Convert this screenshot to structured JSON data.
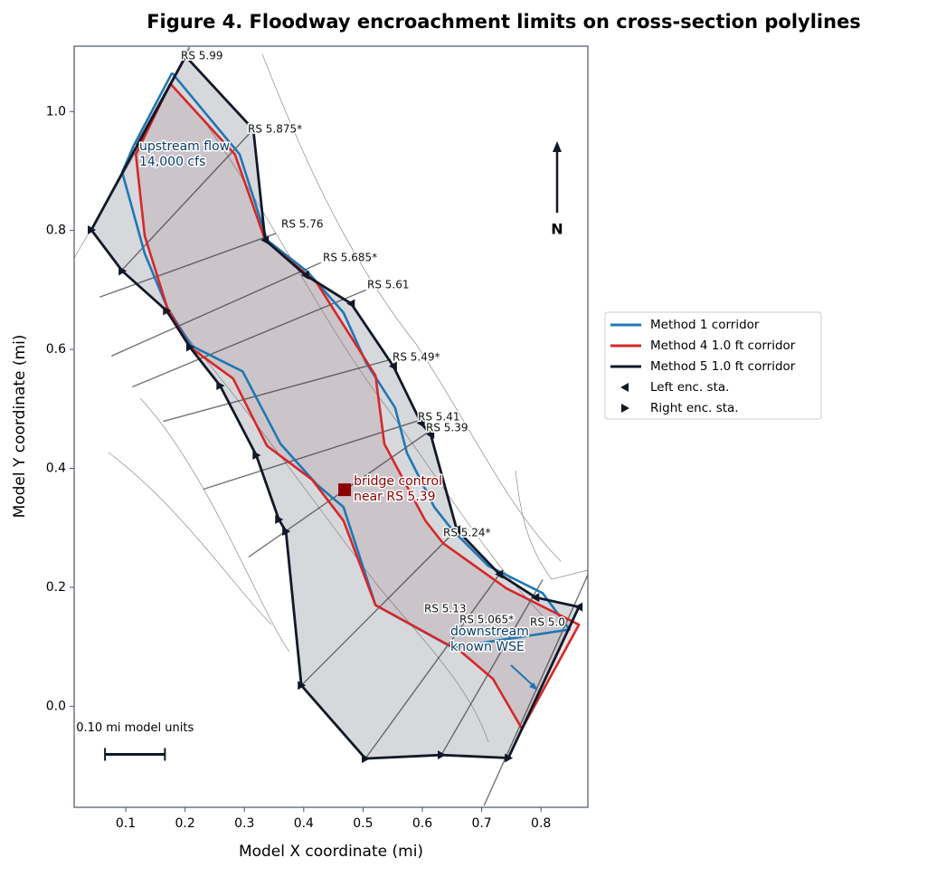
{
  "chart_data": {
    "type": "line",
    "title": "Figure 4. Floodway encroachment limits on cross-section polylines",
    "xlabel": "Model X coordinate (mi)",
    "ylabel": "Model Y coordinate (mi)",
    "xlim": [
      0.013,
      0.879
    ],
    "ylim": [
      -0.17,
      1.11
    ],
    "xticks": [
      0.1,
      0.2,
      0.3,
      0.4,
      0.5,
      0.6,
      0.7,
      0.8
    ],
    "yticks": [
      {
        "value": 0,
        "label": "0.0"
      },
      0.2,
      0.4,
      0.6,
      0.8,
      {
        "value": 1,
        "label": "1.0"
      }
    ],
    "legend": "outside right",
    "series": [
      {
        "name": "Method 1 corridor",
        "color": "#1f77b4",
        "x": [
          0.178,
          0.114,
          0.094,
          0.132,
          0.17,
          0.211,
          0.297,
          0.361,
          0.422,
          0.467,
          0.521,
          0.65,
          0.848,
          0.803,
          0.711,
          0.65,
          0.62,
          0.574,
          0.554,
          0.505,
          0.467,
          0.406,
          0.338,
          0.292,
          0.178
        ],
        "y": [
          1.065,
          0.944,
          0.898,
          0.761,
          0.67,
          0.606,
          0.563,
          0.441,
          0.373,
          0.335,
          0.17,
          0.099,
          0.129,
          0.19,
          0.236,
          0.297,
          0.335,
          0.426,
          0.502,
          0.578,
          0.662,
          0.731,
          0.784,
          0.928,
          1.065
        ]
      },
      {
        "name": "Method 4 1.0 ft corridor",
        "color": "#d62728",
        "x": [
          0.175,
          0.117,
          0.132,
          0.17,
          0.208,
          0.281,
          0.338,
          0.414,
          0.467,
          0.521,
          0.666,
          0.719,
          0.768,
          0.864,
          0.742,
          0.635,
          0.605,
          0.536,
          0.521,
          0.422,
          0.335,
          0.284,
          0.175
        ],
        "y": [
          1.047,
          0.928,
          0.791,
          0.67,
          0.604,
          0.551,
          0.438,
          0.381,
          0.312,
          0.17,
          0.091,
          0.046,
          -0.038,
          0.137,
          0.198,
          0.274,
          0.312,
          0.441,
          0.556,
          0.712,
          0.784,
          0.928,
          1.047
        ]
      },
      {
        "name": "Method 5 1.0 ft corridor",
        "color": "#111827",
        "x": [
          0.201,
          0.315,
          0.335,
          0.403,
          0.48,
          0.551,
          0.598,
          0.614,
          0.658,
          0.73,
          0.791,
          0.864,
          0.745,
          0.632,
          0.504,
          0.396,
          0.37,
          0.358,
          0.32,
          0.259,
          0.208,
          0.169,
          0.094,
          0.042,
          0.201
        ],
        "y": [
          1.093,
          0.97,
          0.784,
          0.725,
          0.677,
          0.572,
          0.476,
          0.457,
          0.297,
          0.222,
          0.183,
          0.167,
          -0.087,
          -0.082,
          -0.088,
          0.035,
          0.294,
          0.314,
          0.422,
          0.539,
          0.604,
          0.665,
          0.732,
          0.801,
          1.093
        ]
      },
      {
        "name": "Left enc. sta.",
        "color": "#111827",
        "marker": "<",
        "x": [
          0.315,
          0.335,
          0.403,
          0.48,
          0.551,
          0.598,
          0.614,
          0.658,
          0.73,
          0.791,
          0.864
        ],
        "y": [
          0.97,
          0.784,
          0.725,
          0.677,
          0.572,
          0.476,
          0.457,
          0.297,
          0.222,
          0.183,
          0.167
        ]
      },
      {
        "name": "Right enc. sta.",
        "color": "#111827",
        "marker": ">",
        "x": [
          0.201,
          0.042,
          0.094,
          0.169,
          0.208,
          0.259,
          0.32,
          0.358,
          0.37,
          0.396,
          0.504,
          0.632,
          0.745
        ],
        "y": [
          1.093,
          0.801,
          0.732,
          0.665,
          0.604,
          0.539,
          0.422,
          0.314,
          0.294,
          0.035,
          -0.088,
          -0.082,
          -0.087
        ]
      }
    ],
    "cross_sections": [
      {
        "label": "RS 5.99",
        "x": [
          0.117,
          0.208
        ],
        "y": [
          0.944,
          1.108
        ]
      },
      {
        "label": "RS 5.875*",
        "x": [
          0.094,
          0.315
        ],
        "y": [
          0.734,
          0.97
        ]
      },
      {
        "label": "RS 5.76",
        "x": [
          0.056,
          0.353
        ],
        "y": [
          0.688,
          0.795
        ]
      },
      {
        "label": "RS 5.685*",
        "x": [
          0.076,
          0.429
        ],
        "y": [
          0.589,
          0.746
        ]
      },
      {
        "label": "RS 5.61",
        "x": [
          0.111,
          0.505
        ],
        "y": [
          0.537,
          0.7
        ]
      },
      {
        "label": "RS 5.49*",
        "x": [
          0.163,
          0.547
        ],
        "y": [
          0.479,
          0.583
        ]
      },
      {
        "label": "RS 5.41",
        "x": [
          0.231,
          0.605
        ],
        "y": [
          0.365,
          0.484
        ]
      },
      {
        "label": "RS 5.39",
        "x": [
          0.307,
          0.617
        ],
        "y": [
          0.251,
          0.466
        ]
      },
      {
        "label": "RS 5.24*",
        "x": [
          0.396,
          0.658
        ],
        "y": [
          0.035,
          0.297
        ]
      },
      {
        "label": "RS 5.13",
        "x": [
          0.504,
          0.73
        ],
        "y": [
          -0.088,
          0.222
        ]
      },
      {
        "label": "RS 5.065*",
        "x": [
          0.632,
          0.803
        ],
        "y": [
          -0.082,
          0.213
        ]
      },
      {
        "label": "RS 5.0",
        "x": [
          0.704,
          0.879
        ],
        "y": [
          -0.167,
          0.221
        ]
      }
    ],
    "annotations": {
      "upstream": [
        "upstream flow",
        "14,000 cfs"
      ],
      "bridge": {
        "text": [
          "bridge control",
          "near RS 5.39"
        ],
        "x": 0.469,
        "y": 0.364,
        "color": "#8b0000"
      },
      "downstream": [
        "downstream",
        "known WSE"
      ],
      "north": "N",
      "scale_bar": {
        "label": "0.10 mi model units",
        "x": [
          0.065,
          0.166
        ],
        "y": -0.081
      }
    }
  }
}
